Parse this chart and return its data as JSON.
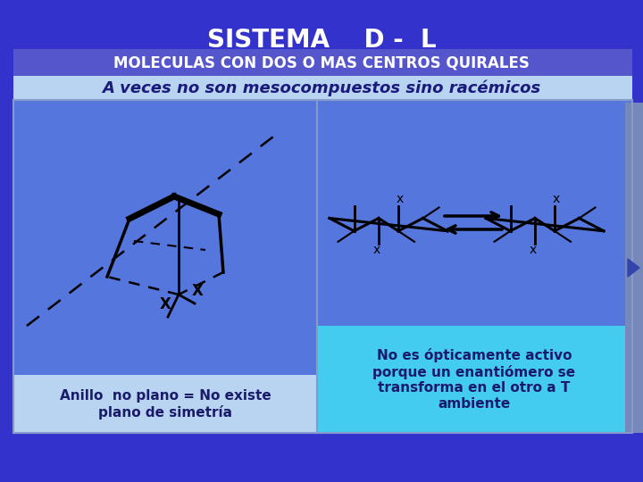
{
  "bg_color": "#3333cc",
  "title": "SISTEMA    D -  L",
  "title_color": "#ffffff",
  "title_fontsize": 20,
  "header_bar_color": "#5555cc",
  "header_text": "MOLECULAS CON DOS O MAS CENTROS QUIRALES",
  "header_text_color": "#ffffff",
  "header_fontsize": 12,
  "subheader_bg": "#b8d4f0",
  "subheader_text": "A veces no son mesocompuestos sino racémicos",
  "subheader_color": "#1a1a7a",
  "subheader_fontsize": 13,
  "left_panel_bg": "#5577dd",
  "right_panel_bg": "#5577dd",
  "left_caption_bg": "#b8d4f0",
  "left_caption_text": "Anillo  no plano = No existe\nplano de simetría",
  "left_caption_color": "#1a1a6a",
  "right_caption_bg": "#44ccee",
  "right_caption_text": "No es ópticamente activo\nporque un enantiómero se\ntransforma en el otro a T\nambiente",
  "right_caption_color": "#1a1a6a",
  "nav_bg": "#8888cc",
  "nav_arrow_color": "#3344aa"
}
